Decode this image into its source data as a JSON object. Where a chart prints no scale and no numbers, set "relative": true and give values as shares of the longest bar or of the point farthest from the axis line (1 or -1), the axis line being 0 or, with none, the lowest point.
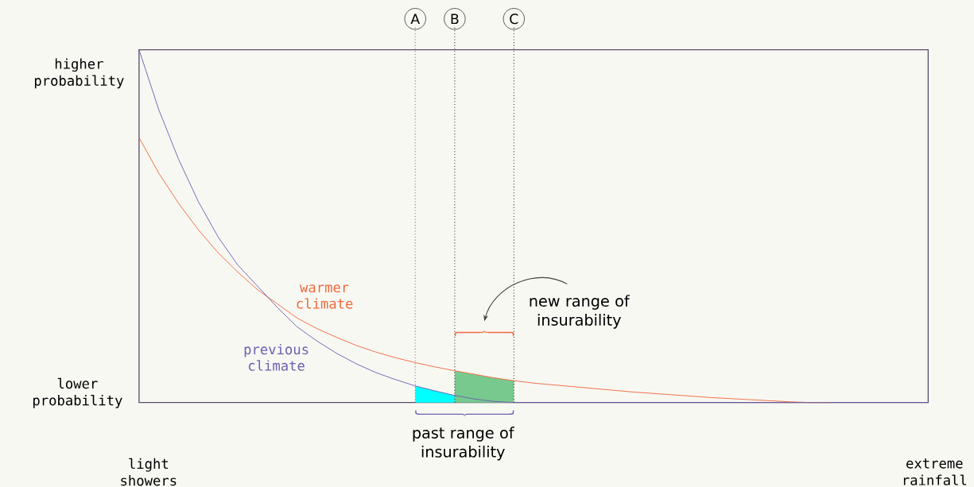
{
  "chart_data": {
    "type": "line",
    "relative": true,
    "categories": [
      null,
      null,
      null,
      null,
      null,
      null,
      null,
      null,
      null,
      null,
      null,
      null,
      null,
      null,
      "A",
      null,
      "B",
      null,
      null,
      "C",
      null,
      null,
      null,
      null,
      null,
      null,
      null,
      null,
      null,
      null,
      null,
      null,
      null,
      null,
      null,
      null,
      null,
      null,
      null,
      null,
      null
    ],
    "series": [
      {
        "name": "warmer climate",
        "color": "#f0693c",
        "values": [
          0.751,
          0.65,
          0.565,
          0.49,
          0.425,
          0.37,
          0.32,
          0.28,
          0.24,
          0.21,
          0.185,
          0.162,
          0.143,
          0.127,
          0.113,
          0.101,
          0.09,
          0.08,
          0.07,
          0.062,
          0.055,
          0.05,
          0.045,
          0.04,
          0.035,
          0.03,
          0.026,
          0.022,
          0.018,
          0.014,
          0.011,
          0.008,
          0.005,
          0.002,
          0,
          0,
          null,
          null,
          null,
          null,
          null
        ]
      },
      {
        "name": "previous climate",
        "color": "#6e5fb0",
        "values": [
          1,
          0.83,
          0.69,
          0.57,
          0.47,
          0.39,
          0.33,
          0.27,
          0.215,
          0.175,
          0.14,
          0.11,
          0.085,
          0.065,
          0.047,
          0.033,
          0.02,
          0.01,
          0.003,
          0,
          0,
          0,
          0,
          0,
          0,
          0,
          0,
          0,
          0,
          0,
          0,
          0,
          0,
          0,
          0,
          0,
          0,
          0,
          0,
          0,
          0
        ]
      },
      {
        "type": "area",
        "color": "#00ffff",
        "values": [
          null,
          null,
          null,
          null,
          null,
          null,
          null,
          null,
          null,
          null,
          null,
          null,
          null,
          null,
          0.047,
          0.033,
          0.02,
          null,
          null,
          null,
          null,
          null,
          null,
          null,
          null,
          null,
          null,
          null,
          null,
          null,
          null,
          null,
          null,
          null,
          null,
          null,
          null,
          null,
          null,
          null,
          null
        ]
      },
      {
        "type": "area",
        "color": "#77c98e",
        "values": [
          null,
          null,
          null,
          null,
          null,
          null,
          null,
          null,
          null,
          null,
          null,
          null,
          null,
          null,
          null,
          null,
          0.09,
          0.08,
          0.07,
          0.062,
          null,
          null,
          null,
          null,
          null,
          null,
          null,
          null,
          null,
          null,
          null,
          null,
          null,
          null,
          null,
          null,
          null,
          null,
          null,
          null,
          null
        ]
      }
    ],
    "ref_lines": [
      {
        "axis": "x",
        "value": "A",
        "color": "#777777",
        "line_style": "dotted"
      },
      {
        "axis": "x",
        "value": "B",
        "color": "#333333",
        "line_style": "dotted"
      },
      {
        "axis": "x",
        "value": "C",
        "color": "#333333",
        "line_style": "dotted"
      }
    ],
    "annotations": [
      "higher probability",
      "lower probability",
      "light showers",
      "extreme rainfall",
      "new range of  insurability",
      "past range of insurability"
    ]
  }
}
